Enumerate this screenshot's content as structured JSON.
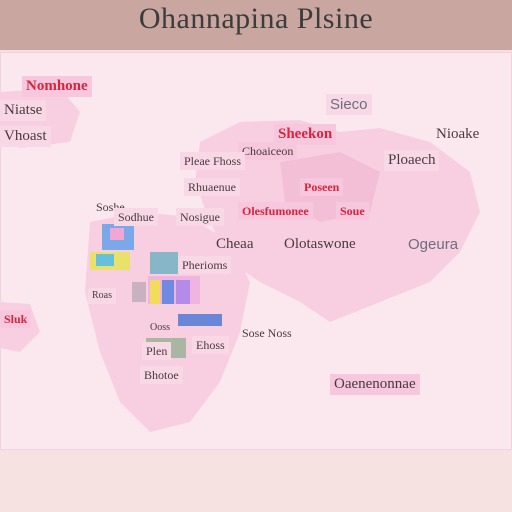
{
  "title": "Ohannapina Plsine",
  "colors": {
    "header_bg": "#c9a6a0",
    "map_bg": "#fbe8ef",
    "land": "#f7cfe0",
    "label_bg": "#f6c7dd",
    "label_red": "#d8243f",
    "footer_bg": "#f6e2e0"
  },
  "labels": [
    {
      "text": "Nomhone",
      "style": "pink red serif big"
    },
    {
      "text": "Niatse",
      "style": "light dark serif big"
    },
    {
      "text": "Vhoast",
      "style": "light dark serif big"
    },
    {
      "text": "Sieco",
      "style": "light grey big"
    },
    {
      "text": "Sheekon",
      "style": "pink red serif big"
    },
    {
      "text": "Nioake",
      "style": "plain dark serif big"
    },
    {
      "text": "Choaiceon",
      "style": "pink dark serif"
    },
    {
      "text": "Pleae Fhoss",
      "style": "light dark serif"
    },
    {
      "text": "Ploaech",
      "style": "light dark serif big"
    },
    {
      "text": "Rhuaenue",
      "style": "light dark serif"
    },
    {
      "text": "Poseen",
      "style": "pink red serif"
    },
    {
      "text": "Soshe",
      "style": "plain dark serif"
    },
    {
      "text": "Sodhue",
      "style": "light dark serif"
    },
    {
      "text": "Nosigue",
      "style": "light dark serif"
    },
    {
      "text": "Olesfumonee",
      "style": "pink red serif"
    },
    {
      "text": "Soue",
      "style": "pink red serif"
    },
    {
      "text": "Cheaa",
      "style": "plain dark serif big"
    },
    {
      "text": "Olotaswone",
      "style": "plain dark serif big"
    },
    {
      "text": "Ogeura",
      "style": "plain grey big"
    },
    {
      "text": "Pherioms",
      "style": "light dark serif"
    },
    {
      "text": "Sluk",
      "style": "pink red serif"
    },
    {
      "text": "Roas",
      "style": "light dark serif small"
    },
    {
      "text": "Ooss",
      "style": "plain dark serif small"
    },
    {
      "text": "Sose Noss",
      "style": "plain dark serif"
    },
    {
      "text": "Plen",
      "style": "light dark serif"
    },
    {
      "text": "Ehoss",
      "style": "light dark serif"
    },
    {
      "text": "Bhotoe",
      "style": "light dark serif"
    },
    {
      "text": "Oaenenonnae",
      "style": "pink dark serif big"
    }
  ]
}
